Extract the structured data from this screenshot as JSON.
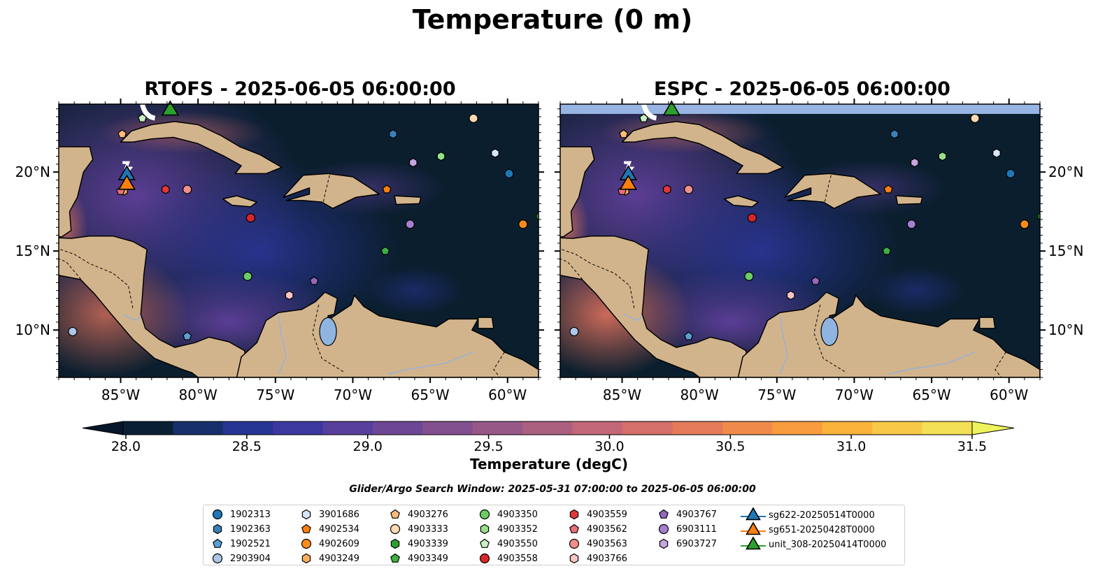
{
  "title": "Temperature (0 m)",
  "panels": [
    {
      "id": "rtofs",
      "title": "RTOFS - 2025-06-05 06:00:00"
    },
    {
      "id": "espc",
      "title": "ESPC - 2025-06-05 06:00:00"
    }
  ],
  "map": {
    "lon_range": [
      -89.0,
      -58.0
    ],
    "lat_range": [
      7.0,
      24.3
    ],
    "lon_ticks": [
      "85°W",
      "80°W",
      "75°W",
      "70°W",
      "65°W",
      "60°W"
    ],
    "lon_tick_values": [
      -85,
      -80,
      -75,
      -70,
      -65,
      -60
    ],
    "lat_ticks": [
      "10°N",
      "15°N",
      "20°N"
    ],
    "lat_tick_values": [
      10,
      15,
      20
    ],
    "land_color": "#d2b48c",
    "ocean_color": "#0a1e2e"
  },
  "colorbar": {
    "label": "Temperature (degC)",
    "min": 28.0,
    "max": 31.5,
    "ticks": [
      "28.0",
      "28.5",
      "29.0",
      "29.5",
      "30.0",
      "30.5",
      "31.0",
      "31.5"
    ],
    "tick_values": [
      28.0,
      28.5,
      29.0,
      29.5,
      30.0,
      30.5,
      31.0,
      31.5
    ],
    "colors": [
      "#0a1f33",
      "#15306a",
      "#263494",
      "#3b38a0",
      "#573f9b",
      "#6d4795",
      "#82508e",
      "#975888",
      "#ac6080",
      "#c16776",
      "#d46f69",
      "#e47a5a",
      "#f08a4b",
      "#f89c3d",
      "#fbb23b",
      "#f7c946",
      "#f3df54"
    ],
    "extend_max_color": "#eef35d",
    "extend_min_color": "#07172a"
  },
  "search_window": "Glider/Argo Search Window: 2025-05-31 07:00:00 to 2025-06-05 06:00:00",
  "floats": [
    {
      "id": "1902313",
      "marker": "circle",
      "color": "#1f77b4",
      "lon": -59.9,
      "lat": 19.9
    },
    {
      "id": "1902363",
      "marker": "hexagon",
      "color": "#3a80b8",
      "lon": -67.4,
      "lat": 22.4
    },
    {
      "id": "1902521",
      "marker": "pentagon",
      "color": "#5a9fd4",
      "lon": -80.7,
      "lat": 9.6
    },
    {
      "id": "2903904",
      "marker": "circle",
      "color": "#aec7e8",
      "lon": -88.1,
      "lat": 9.9
    },
    {
      "id": "3901686",
      "marker": "hexagon",
      "color": "#d6e6f7",
      "lon": -60.8,
      "lat": 21.2
    },
    {
      "id": "4902534",
      "marker": "pentagon",
      "color": "#ff7f0e",
      "lon": -67.8,
      "lat": 18.9
    },
    {
      "id": "4902609",
      "marker": "circle",
      "color": "#ff8c1a",
      "lon": -59.0,
      "lat": 16.7
    },
    {
      "id": "4903249",
      "marker": "hexagon",
      "color": "#ffad5c",
      "lon": -84.8,
      "lat": 18.8
    },
    {
      "id": "4903276",
      "marker": "pentagon",
      "color": "#ffbb78",
      "lon": -84.9,
      "lat": 22.4
    },
    {
      "id": "4903333",
      "marker": "circle",
      "color": "#ffd9b3",
      "lon": -62.2,
      "lat": 23.4
    },
    {
      "id": "4903339",
      "marker": "hexagon",
      "color": "#2ca02c",
      "lon": -57.9,
      "lat": 17.2
    },
    {
      "id": "4903349",
      "marker": "pentagon",
      "color": "#3cb043",
      "lon": -67.9,
      "lat": 15.0
    },
    {
      "id": "4903350",
      "marker": "circle",
      "color": "#6acc64",
      "lon": -76.8,
      "lat": 13.4
    },
    {
      "id": "4903352",
      "marker": "hexagon",
      "color": "#98df8a",
      "lon": -64.3,
      "lat": 21.0
    },
    {
      "id": "4903550",
      "marker": "pentagon",
      "color": "#c7f0c0",
      "lon": -83.6,
      "lat": 23.4
    },
    {
      "id": "4903558",
      "marker": "circle",
      "color": "#d62728",
      "lon": -76.6,
      "lat": 17.1
    },
    {
      "id": "4903559",
      "marker": "hexagon",
      "color": "#e0373a",
      "lon": -82.1,
      "lat": 18.9
    },
    {
      "id": "4903562",
      "marker": "pentagon",
      "color": "#e8707a",
      "lon": -85.0,
      "lat": 18.8
    },
    {
      "id": "4903563",
      "marker": "circle",
      "color": "#f0908a",
      "lon": -80.7,
      "lat": 18.9
    },
    {
      "id": "4903766",
      "marker": "hexagon",
      "color": "#ffc4c4",
      "lon": -74.1,
      "lat": 12.2
    },
    {
      "id": "4903767",
      "marker": "pentagon",
      "color": "#9467bd",
      "lon": -72.5,
      "lat": 13.1
    },
    {
      "id": "6903111",
      "marker": "circle",
      "color": "#a77fcf",
      "lon": -66.3,
      "lat": 16.7
    },
    {
      "id": "6903727",
      "marker": "hexagon",
      "color": "#c5a5e0",
      "lon": -66.1,
      "lat": 20.6
    }
  ],
  "gliders": [
    {
      "id": "sg622-20250514T0000",
      "color": "#1f77b4",
      "lon": -84.6,
      "lat": 19.8
    },
    {
      "id": "sg651-20250428T0000",
      "color": "#ff7f0e",
      "lon": -84.6,
      "lat": 19.2
    },
    {
      "id": "unit_308-20250414T0000",
      "color": "#2ca02c",
      "lon": -81.8,
      "lat": 23.9
    }
  ]
}
